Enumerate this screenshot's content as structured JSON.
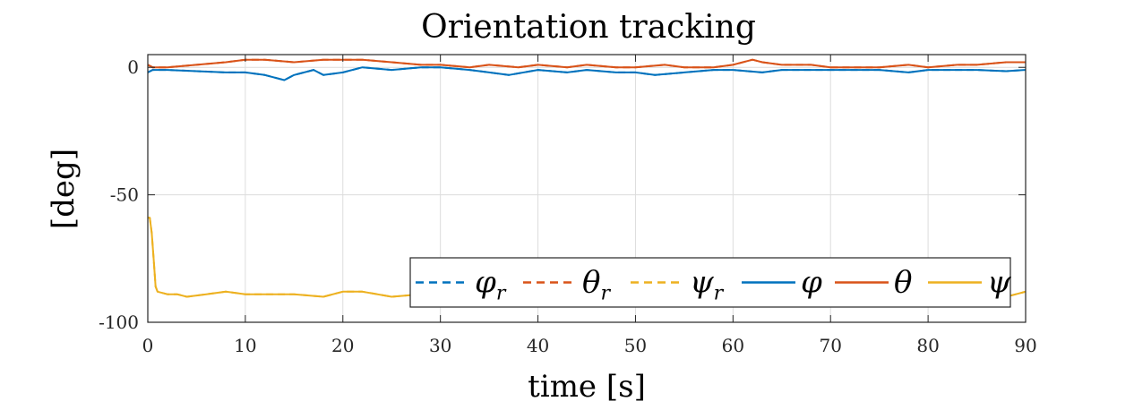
{
  "chart_data": {
    "type": "line",
    "title": "Orientation tracking",
    "xlabel": "time [s]",
    "ylabel": "[deg]",
    "xlim": [
      0,
      90
    ],
    "ylim": [
      -100,
      5
    ],
    "xticks": [
      0,
      10,
      20,
      30,
      40,
      50,
      60,
      70,
      80,
      90
    ],
    "xtick_labels": [
      "0",
      "10",
      "20",
      "30",
      "40",
      "50",
      "60",
      "70",
      "80",
      "90"
    ],
    "yticks": [
      0,
      -50,
      -100
    ],
    "ytick_labels": [
      "0",
      "-50",
      "-100"
    ],
    "grid": true,
    "legend_position": "bottom-right",
    "legend_orientation": "horizontal",
    "series": [
      {
        "name": "φ",
        "sub": "r",
        "color": "#0072BD",
        "style": "dashed",
        "x": [
          0,
          0.5,
          2,
          5,
          8,
          10,
          12,
          14,
          15,
          17,
          18,
          20,
          22,
          25,
          28,
          30,
          33,
          35,
          37,
          40,
          43,
          45,
          48,
          50,
          52,
          55,
          58,
          60,
          63,
          65,
          68,
          70,
          73,
          75,
          78,
          80,
          83,
          85,
          88,
          90
        ],
        "values": [
          -2,
          -1,
          -1,
          -1.5,
          -2,
          -2,
          -3,
          -5,
          -3,
          -1,
          -3,
          -2,
          0,
          -1,
          0,
          0,
          -1,
          -2,
          -3,
          -1,
          -2,
          -1,
          -2,
          -2,
          -3,
          -2,
          -1,
          -1,
          -2,
          -1,
          -1,
          -1,
          -1,
          -1,
          -2,
          -1,
          -1,
          -1,
          -1.5,
          -1
        ]
      },
      {
        "name": "θ",
        "sub": "r",
        "color": "#D95319",
        "style": "dashed",
        "x": [
          0,
          0.5,
          2,
          5,
          8,
          10,
          12,
          15,
          18,
          20,
          22,
          25,
          28,
          30,
          33,
          35,
          38,
          40,
          43,
          45,
          48,
          50,
          53,
          55,
          58,
          60,
          62,
          63,
          65,
          68,
          70,
          73,
          75,
          78,
          80,
          83,
          85,
          88,
          90
        ],
        "values": [
          1,
          0,
          0,
          1,
          2,
          3,
          3,
          2,
          3,
          3,
          3,
          2,
          1,
          1,
          0,
          1,
          0,
          1,
          0,
          1,
          0,
          0,
          1,
          0,
          0,
          1,
          3,
          2,
          1,
          1,
          0,
          0,
          0,
          1,
          0,
          1,
          1,
          2,
          2
        ]
      },
      {
        "name": "ψ",
        "sub": "r",
        "color": "#EDB120",
        "style": "dashed",
        "x": [
          0,
          0.2,
          0.4,
          0.6,
          0.8,
          1,
          2,
          3,
          4,
          6,
          8,
          10,
          12,
          15,
          18,
          20,
          22,
          25,
          28,
          30,
          35,
          40,
          50,
          60,
          70,
          80,
          85,
          88,
          89,
          90
        ],
        "values": [
          -59,
          -59,
          -65,
          -75,
          -86,
          -88,
          -89,
          -89,
          -90,
          -89,
          -88,
          -89,
          -89,
          -89,
          -90,
          -88,
          -88,
          -90,
          -89,
          -90,
          -90,
          -90,
          -90,
          -90,
          -90,
          -90,
          -90,
          -90,
          -89,
          -88
        ]
      },
      {
        "name": "φ",
        "sub": "",
        "color": "#0072BD",
        "style": "solid",
        "x": [
          0,
          0.5,
          2,
          5,
          8,
          10,
          12,
          14,
          15,
          17,
          18,
          20,
          22,
          25,
          28,
          30,
          33,
          35,
          37,
          40,
          43,
          45,
          48,
          50,
          52,
          55,
          58,
          60,
          63,
          65,
          68,
          70,
          73,
          75,
          78,
          80,
          83,
          85,
          88,
          90
        ],
        "values": [
          -2,
          -1,
          -1,
          -1.5,
          -2,
          -2,
          -3,
          -5,
          -3,
          -1,
          -3,
          -2,
          0,
          -1,
          0,
          0,
          -1,
          -2,
          -3,
          -1,
          -2,
          -1,
          -2,
          -2,
          -3,
          -2,
          -1,
          -1,
          -2,
          -1,
          -1,
          -1,
          -1,
          -1,
          -2,
          -1,
          -1,
          -1,
          -1.5,
          -1
        ]
      },
      {
        "name": "θ",
        "sub": "",
        "color": "#D95319",
        "style": "solid",
        "x": [
          0,
          0.5,
          2,
          5,
          8,
          10,
          12,
          15,
          18,
          20,
          22,
          25,
          28,
          30,
          33,
          35,
          38,
          40,
          43,
          45,
          48,
          50,
          53,
          55,
          58,
          60,
          62,
          63,
          65,
          68,
          70,
          73,
          75,
          78,
          80,
          83,
          85,
          88,
          90
        ],
        "values": [
          1,
          0,
          0,
          1,
          2,
          3,
          3,
          2,
          3,
          3,
          3,
          2,
          1,
          1,
          0,
          1,
          0,
          1,
          0,
          1,
          0,
          0,
          1,
          0,
          0,
          1,
          3,
          2,
          1,
          1,
          0,
          0,
          0,
          1,
          0,
          1,
          1,
          2,
          2
        ]
      },
      {
        "name": "ψ",
        "sub": "",
        "color": "#EDB120",
        "style": "solid",
        "x": [
          0,
          0.2,
          0.4,
          0.6,
          0.8,
          1,
          2,
          3,
          4,
          6,
          8,
          10,
          12,
          15,
          18,
          20,
          22,
          25,
          28,
          30,
          35,
          40,
          50,
          60,
          70,
          80,
          85,
          88,
          89,
          90
        ],
        "values": [
          -59,
          -59,
          -65,
          -75,
          -86,
          -88,
          -89,
          -89,
          -90,
          -89,
          -88,
          -89,
          -89,
          -89,
          -90,
          -88,
          -88,
          -90,
          -89,
          -90,
          -90,
          -90,
          -90,
          -90,
          -90,
          -90,
          -90,
          -90,
          -89,
          -88
        ]
      }
    ]
  }
}
